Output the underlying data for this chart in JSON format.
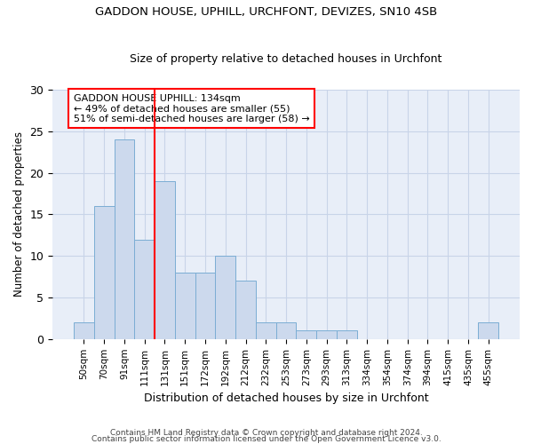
{
  "title1": "GADDON HOUSE, UPHILL, URCHFONT, DEVIZES, SN10 4SB",
  "title2": "Size of property relative to detached houses in Urchfont",
  "xlabel": "Distribution of detached houses by size in Urchfont",
  "ylabel": "Number of detached properties",
  "categories": [
    "50sqm",
    "70sqm",
    "91sqm",
    "111sqm",
    "131sqm",
    "151sqm",
    "172sqm",
    "192sqm",
    "212sqm",
    "232sqm",
    "253sqm",
    "273sqm",
    "293sqm",
    "313sqm",
    "334sqm",
    "354sqm",
    "374sqm",
    "394sqm",
    "415sqm",
    "435sqm",
    "455sqm"
  ],
  "values": [
    2,
    16,
    24,
    12,
    19,
    8,
    8,
    10,
    7,
    2,
    2,
    1,
    1,
    1,
    0,
    0,
    0,
    0,
    0,
    0,
    2
  ],
  "bar_color": "#ccd9ed",
  "bar_edge_color": "#7badd4",
  "vline_x": 3.5,
  "annotation_text": "GADDON HOUSE UPHILL: 134sqm\n← 49% of detached houses are smaller (55)\n51% of semi-detached houses are larger (58) →",
  "annotation_box_color": "white",
  "annotation_box_edge_color": "red",
  "vline_color": "red",
  "ylim": [
    0,
    30
  ],
  "yticks": [
    0,
    5,
    10,
    15,
    20,
    25,
    30
  ],
  "background_color": "white",
  "axes_bg_color": "#e8eef8",
  "grid_color": "#c8d4e8",
  "footer1": "Contains HM Land Registry data © Crown copyright and database right 2024.",
  "footer2": "Contains public sector information licensed under the Open Government Licence v3.0."
}
